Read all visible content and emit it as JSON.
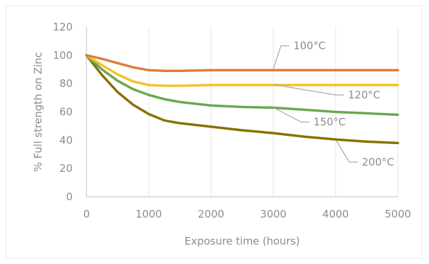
{
  "chart_data": {
    "type": "line",
    "title": "",
    "xlabel": "Exposure time (hours)",
    "ylabel": "% Full strength on Zinc",
    "xlim": [
      0,
      5000
    ],
    "ylim": [
      0,
      120
    ],
    "xticks": [
      0,
      1000,
      2000,
      3000,
      4000,
      5000
    ],
    "yticks": [
      0,
      20,
      40,
      60,
      80,
      100,
      120
    ],
    "grid": "vertical",
    "legend": "none",
    "series": [
      {
        "name": "100°C",
        "color": "#e07b39",
        "x": [
          0,
          250,
          500,
          750,
          1000,
          1250,
          1500,
          2000,
          3000,
          4000,
          5000
        ],
        "y": [
          100,
          97.5,
          94.5,
          91.5,
          89.5,
          89,
          89,
          89.5,
          89.5,
          89.5,
          89.5
        ]
      },
      {
        "name": "120°C",
        "color": "#f2c12e",
        "x": [
          0,
          250,
          500,
          750,
          1000,
          1250,
          1500,
          2000,
          3000,
          4000,
          5000
        ],
        "y": [
          100,
          93,
          86.5,
          81.5,
          79,
          78.5,
          78.5,
          79,
          79,
          79,
          79
        ]
      },
      {
        "name": "150°C",
        "color": "#6aa84f",
        "x": [
          0,
          250,
          500,
          750,
          1000,
          1250,
          1500,
          2000,
          2500,
          3000,
          3500,
          4000,
          4500,
          5000
        ],
        "y": [
          100,
          90,
          82,
          76,
          72,
          69,
          67,
          64.5,
          63.5,
          63,
          61.5,
          60,
          59,
          58
        ]
      },
      {
        "name": "200°C",
        "color": "#8a7000",
        "x": [
          0,
          250,
          500,
          750,
          1000,
          1250,
          1500,
          2000,
          2500,
          3000,
          3500,
          4000,
          4500,
          5000
        ],
        "y": [
          100,
          86,
          74,
          65,
          58.5,
          54,
          52,
          49.5,
          47,
          45,
          42.5,
          40.5,
          39,
          38
        ]
      }
    ],
    "annotations": [
      {
        "text": "100°C",
        "series": "100°C"
      },
      {
        "text": "120°C",
        "series": "120°C"
      },
      {
        "text": "150°C",
        "series": "150°C"
      },
      {
        "text": "200°C",
        "series": "200°C"
      }
    ]
  }
}
